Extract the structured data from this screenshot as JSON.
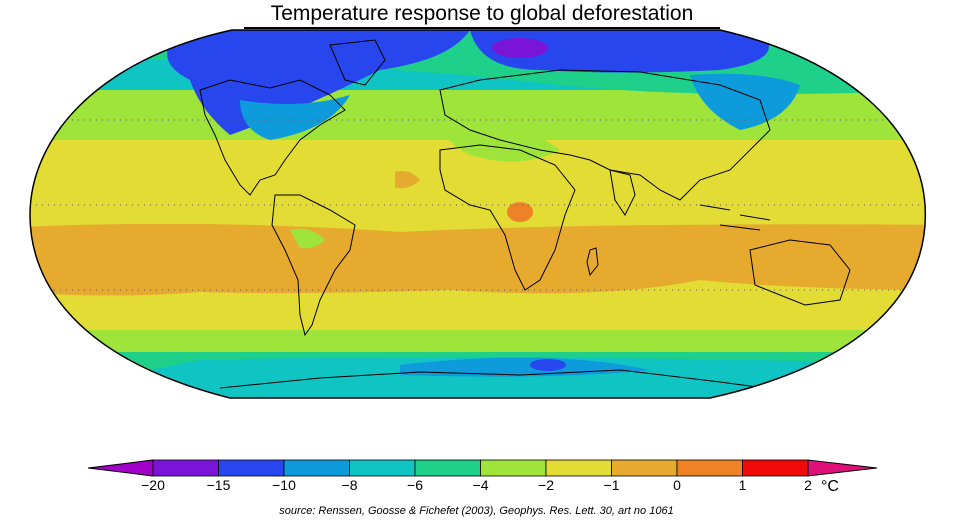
{
  "title": "Temperature response to global deforestation",
  "source": "source: Renssen, Goosse & Fichefet (2003), Geophys. Res. Lett. 30, art no 1061",
  "colorbar": {
    "unit": "°C",
    "tick_labels": [
      "−20",
      "−15",
      "−10",
      "−8",
      "−6",
      "−4",
      "−2",
      "−1",
      "0",
      "1",
      "2"
    ],
    "underflow_color": "#a000c8",
    "overflow_color": "#e0107a",
    "bins": [
      {
        "from": -20,
        "to": -15,
        "color": "#7a14d6"
      },
      {
        "from": -15,
        "to": -10,
        "color": "#2846ee"
      },
      {
        "from": -10,
        "to": -8,
        "color": "#0d9bdb"
      },
      {
        "from": -8,
        "to": -6,
        "color": "#10c4c4"
      },
      {
        "from": -6,
        "to": -4,
        "color": "#1ed08a"
      },
      {
        "from": -4,
        "to": -2,
        "color": "#9ee43a"
      },
      {
        "from": -2,
        "to": -1,
        "color": "#e2dc34"
      },
      {
        "from": -1,
        "to": 0,
        "color": "#e6aa2e"
      },
      {
        "from": 0,
        "to": 1,
        "color": "#ee8226"
      },
      {
        "from": 1,
        "to": 2,
        "color": "#f00a0a"
      }
    ]
  }
}
